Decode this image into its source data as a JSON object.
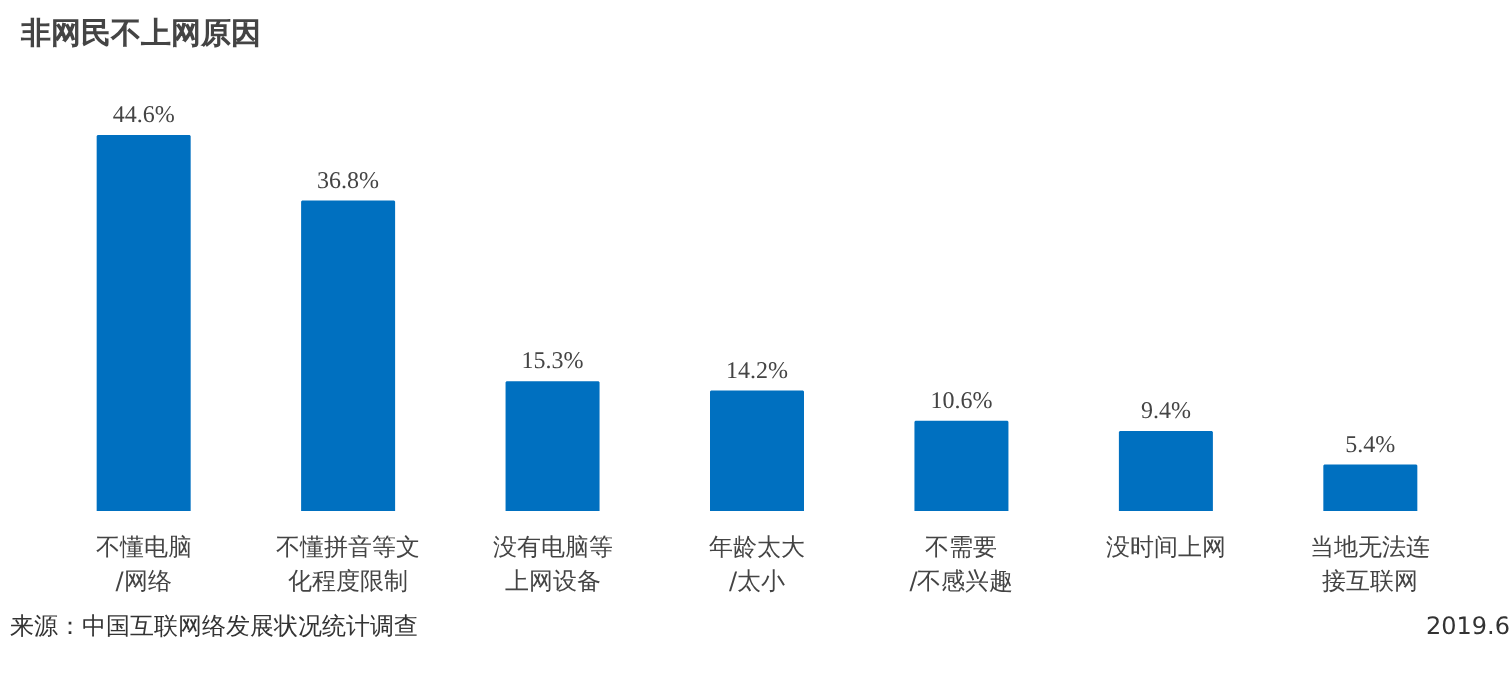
{
  "chart_data": {
    "type": "bar",
    "title": "非网民不上网原因",
    "categories": [
      "不懂电脑\n/网络",
      "不懂拼音等文化程度限制",
      "没有电脑等上网设备",
      "年龄太大\n/太小",
      "不需要\n/不感兴趣",
      "没时间上网",
      "当地无法连接互联网"
    ],
    "values": [
      44.6,
      36.8,
      15.3,
      14.2,
      10.6,
      9.4,
      5.4
    ],
    "value_labels": [
      "44.6%",
      "36.8%",
      "15.3%",
      "14.2%",
      "10.6%",
      "9.4%",
      "5.4%"
    ],
    "color": "#0070c0",
    "annotations": [
      "来源：中国互联网络发展状况统计调查",
      "2019.6"
    ]
  }
}
